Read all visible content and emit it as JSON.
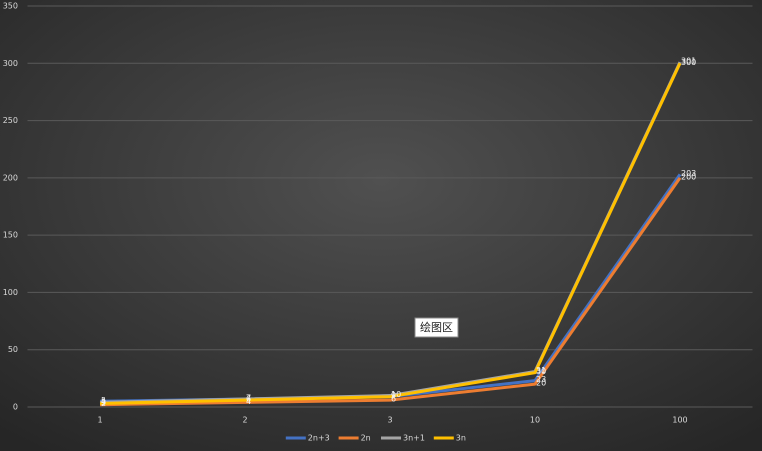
{
  "chart_data": {
    "type": "line",
    "categories": [
      "1",
      "2",
      "3",
      "10",
      "100"
    ],
    "series": [
      {
        "name": "2n+3",
        "color": "#4472c4",
        "values": [
          5,
          7,
          9,
          23,
          203
        ]
      },
      {
        "name": "2n",
        "color": "#ed7d31",
        "values": [
          2,
          4,
          6,
          20,
          200
        ]
      },
      {
        "name": "3n+1",
        "color": "#a5a5a5",
        "values": [
          4,
          7,
          10,
          31,
          301
        ]
      },
      {
        "name": "3n",
        "color": "#ffc000",
        "values": [
          3,
          6,
          9,
          30,
          300
        ]
      }
    ],
    "ylim": [
      0,
      350
    ],
    "yticks": [
      0,
      50,
      100,
      150,
      200,
      250,
      300,
      350
    ],
    "grid": true,
    "legend": "bottom",
    "annotation": "绘图区"
  }
}
